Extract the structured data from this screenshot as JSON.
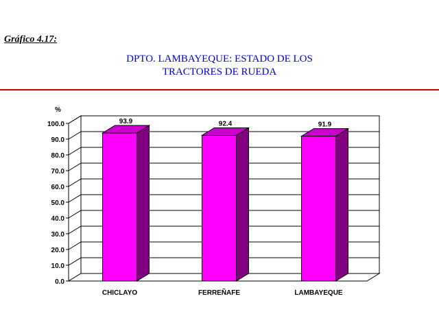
{
  "caption": "Gráfico 4.17:",
  "title_line1": "DPTO. LAMBAYEQUE: ESTADO DE LOS",
  "title_line2": "TRACTORES DE RUEDA",
  "colors": {
    "bar_front": "#ff00ff",
    "bar_side": "#800080",
    "bar_top": "#cc00cc",
    "rule": "#cc0000",
    "title": "#0000cc"
  },
  "chart_data": {
    "type": "bar",
    "title": "DPTO. LAMBAYEQUE: ESTADO DE LOS TRACTORES DE RUEDA",
    "ylabel": "%",
    "xlabel": "",
    "categories": [
      "CHICLAYO",
      "FERREÑAFE",
      "LAMBAYEQUE"
    ],
    "values": [
      93.9,
      92.4,
      91.9
    ],
    "value_labels": [
      "93.9",
      "92.4",
      "91.9"
    ],
    "ylim": [
      0,
      100
    ],
    "yticks": [
      "0.0",
      "10.0",
      "20.0",
      "30.0",
      "40.0",
      "50.0",
      "60.0",
      "70.0",
      "80.0",
      "90.0",
      "100.0"
    ],
    "grid": true,
    "legend": "none",
    "style": "3d"
  }
}
